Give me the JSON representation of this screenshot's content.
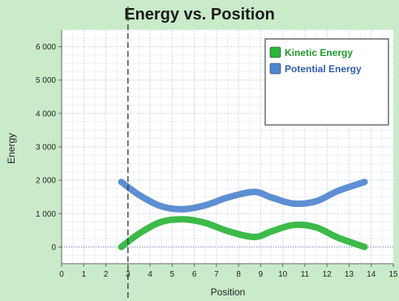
{
  "chart_data": {
    "type": "line",
    "title": "Energy vs. Position",
    "xlabel": "Position",
    "ylabel": "Energy",
    "xlim": [
      0,
      15
    ],
    "ylim": [
      -500,
      6500
    ],
    "xticks": [
      "0",
      "1",
      "2",
      "3",
      "4",
      "5",
      "6",
      "7",
      "8",
      "9",
      "10",
      "11",
      "12",
      "13",
      "14",
      "15"
    ],
    "yticks": [
      "0",
      "1 000",
      "2 000",
      "3 000",
      "4 000",
      "5 000",
      "6 000"
    ],
    "ytick_values": [
      0,
      1000,
      2000,
      3000,
      4000,
      5000,
      6000
    ],
    "grid": true,
    "legend_position": "top-right",
    "marker_position_x": 3,
    "series": [
      {
        "name": "Kinetic Energy",
        "color": "#2bb53a",
        "x": [
          2.7,
          3.5,
          4.5,
          5.5,
          6.5,
          7.5,
          8.7,
          9.5,
          10.5,
          11.5,
          12.5,
          13.7
        ],
        "y": [
          0,
          400,
          750,
          830,
          720,
          480,
          300,
          470,
          660,
          590,
          280,
          0
        ]
      },
      {
        "name": "Potential Energy",
        "color": "#4f86cf",
        "x": [
          2.7,
          3.5,
          4.5,
          5.5,
          6.5,
          7.5,
          8.7,
          9.5,
          10.5,
          11.5,
          12.5,
          13.7
        ],
        "y": [
          1950,
          1560,
          1220,
          1130,
          1250,
          1480,
          1650,
          1480,
          1300,
          1370,
          1680,
          1950
        ]
      }
    ]
  }
}
